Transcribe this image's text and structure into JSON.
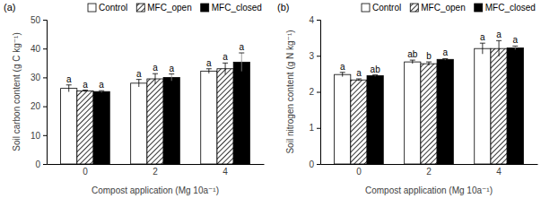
{
  "chart_data": [
    {
      "type": "bar",
      "title": "(a)",
      "x_label": "Compost application (Mg 10a⁻¹)",
      "y_label": "Soil carbon content (g C kg⁻¹)",
      "categories": [
        "0",
        "2",
        "4"
      ],
      "series": [
        {
          "name": "Control",
          "color": "#ffffff",
          "values": [
            26.2,
            28.0,
            32.2
          ],
          "errors": [
            1.2,
            1.3,
            0.8
          ],
          "letters": [
            "a",
            "a",
            "a"
          ]
        },
        {
          "name": "MFC_open",
          "color": "#ffffff",
          "marker": "hatch",
          "values": [
            25.3,
            29.5,
            33.0
          ],
          "errors": [
            0.3,
            1.8,
            2.0
          ],
          "letters": [
            "a",
            "a",
            "a"
          ]
        },
        {
          "name": "MFC_closed",
          "color": "#000000",
          "values": [
            25.1,
            30.0,
            35.3
          ],
          "errors": [
            0.3,
            1.2,
            3.2
          ],
          "letters": [
            "a",
            "a",
            "a"
          ]
        }
      ],
      "ylim": [
        0,
        50
      ],
      "yticks": [
        0,
        10,
        20,
        30,
        40,
        50
      ],
      "legend": "top"
    },
    {
      "type": "bar",
      "title": "(b)",
      "x_label": "Compost application (Mg 10a⁻¹)",
      "y_label": "Soil nitrogen content (g N kg⁻¹)",
      "categories": [
        "0",
        "2",
        "4"
      ],
      "series": [
        {
          "name": "Control",
          "color": "#ffffff",
          "values": [
            2.48,
            2.83,
            3.2
          ],
          "errors": [
            0.06,
            0.05,
            0.15
          ],
          "letters": [
            "a",
            "ab",
            "a"
          ]
        },
        {
          "name": "MFC_open",
          "color": "#ffffff",
          "marker": "hatch",
          "values": [
            2.33,
            2.78,
            3.2
          ],
          "errors": [
            0.03,
            0.05,
            0.22
          ],
          "letters": [
            "a",
            "b",
            "a"
          ]
        },
        {
          "name": "MFC_closed",
          "color": "#000000",
          "values": [
            2.45,
            2.9,
            3.22
          ],
          "errors": [
            0.02,
            0.02,
            0.05
          ],
          "letters": [
            "ab",
            "a",
            "a"
          ]
        }
      ],
      "ylim": [
        0,
        4
      ],
      "yticks": [
        0,
        1,
        2,
        3,
        4
      ],
      "legend": "top"
    }
  ]
}
